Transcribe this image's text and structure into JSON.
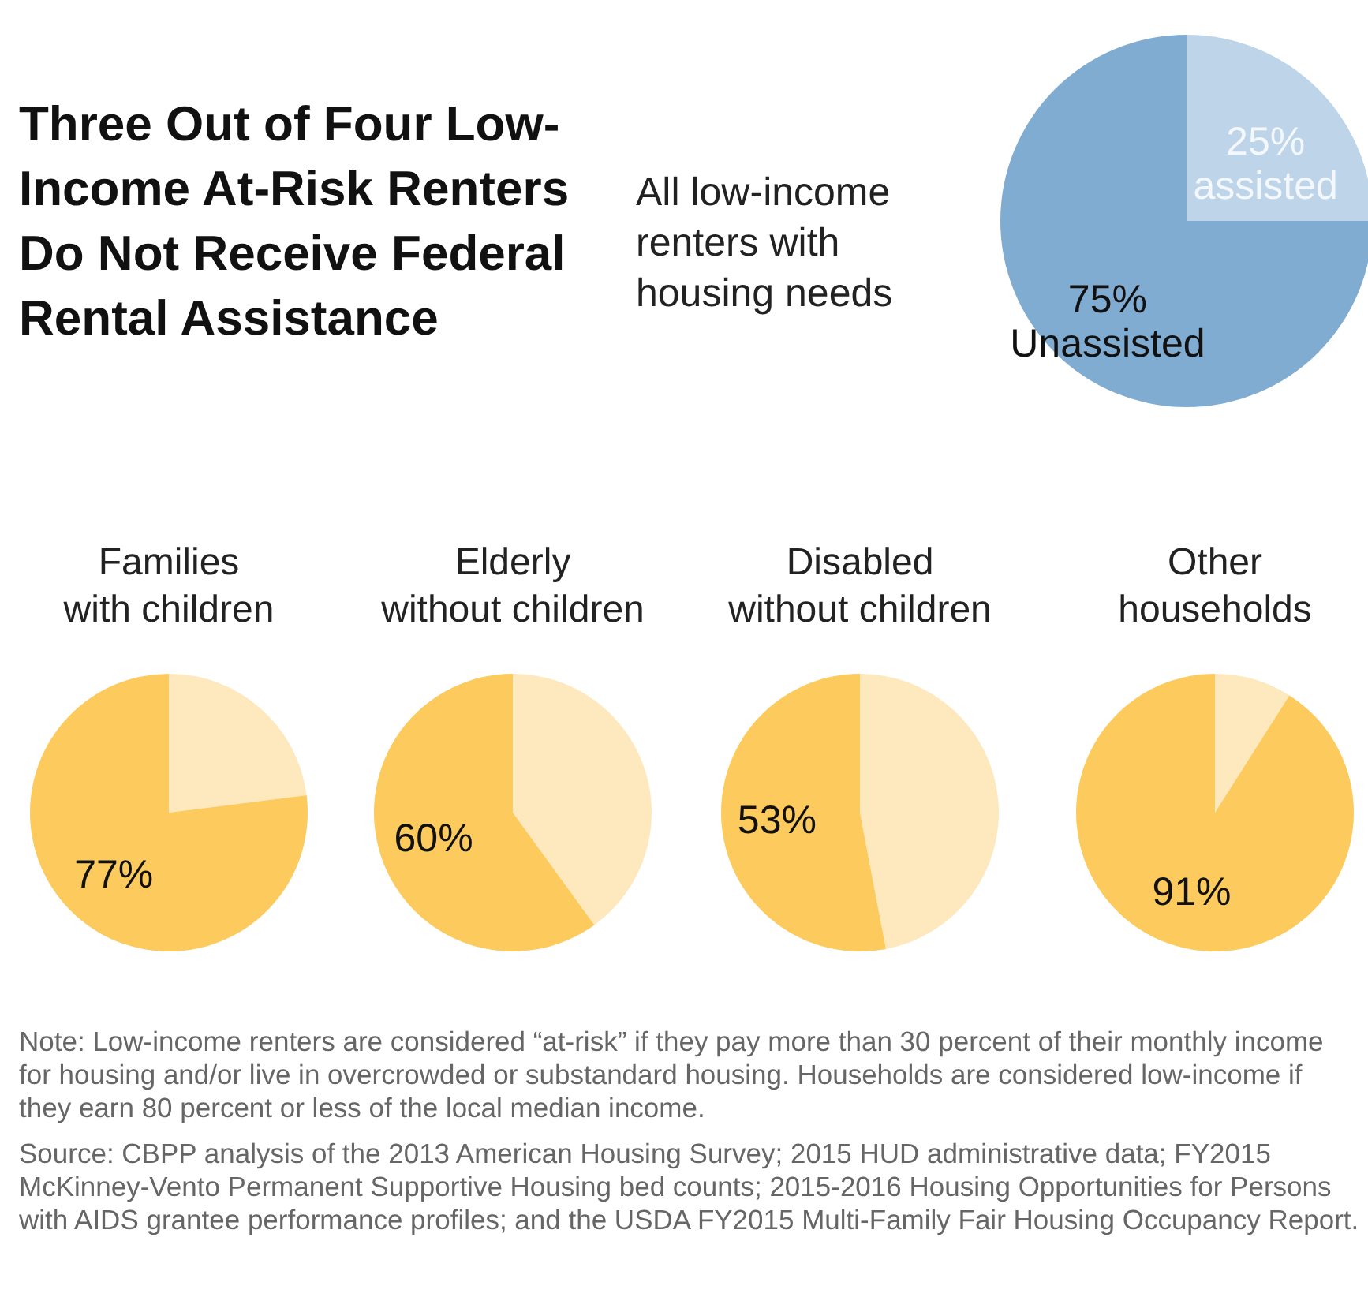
{
  "chart_data": [
    {
      "type": "pie",
      "title": "Three Out of Four Low-Income At-Risk Renters Do Not Receive Federal Rental Assistance",
      "subtitle": "All low-income renters with housing needs",
      "categories": [
        "assisted",
        "Unassisted"
      ],
      "values": [
        25,
        75
      ],
      "colors": [
        "#bdd4e9",
        "#81acd2"
      ],
      "value_labels": [
        "25%",
        "75%"
      ],
      "annotations": [
        "Note: Low-income renters are considered “at-risk” if they pay more than 30 percent of their monthly income for housing and/or live in overcrowded or substandard housing. Households are considered low-income if they earn 80 percent or less of the local median income.",
        "Source:  CBPP analysis of the 2013 American Housing Survey; 2015 HUD administrative data; FY2015 McKinney-Vento Permanent Supportive Housing bed counts; 2015-2016 Housing Opportunities for Persons with AIDS grantee performance profiles; and the USDA FY2015 Multi-Family Fair Housing Occupancy Report."
      ]
    },
    {
      "type": "pie",
      "title": "Families with children",
      "categories": [
        null,
        null
      ],
      "values": [
        23,
        77
      ],
      "colors": [
        "#fee8bd",
        "#fdcb5d"
      ],
      "value_labels": [
        null,
        "77%"
      ]
    },
    {
      "type": "pie",
      "title": "Elderly without children",
      "categories": [
        null,
        null
      ],
      "values": [
        40,
        60
      ],
      "colors": [
        "#fee8bd",
        "#fdcb5d"
      ],
      "value_labels": [
        null,
        "60%"
      ]
    },
    {
      "type": "pie",
      "title": "Disabled without children",
      "categories": [
        null,
        null
      ],
      "values": [
        47,
        53
      ],
      "colors": [
        "#fee8bd",
        "#fdcb5d"
      ],
      "value_labels": [
        null,
        "53%"
      ]
    },
    {
      "type": "pie",
      "title": "Other households",
      "categories": [
        null,
        null
      ],
      "values": [
        9,
        91
      ],
      "colors": [
        "#fee8bd",
        "#fdcb5d"
      ],
      "value_labels": [
        null,
        "91%"
      ]
    }
  ]
}
